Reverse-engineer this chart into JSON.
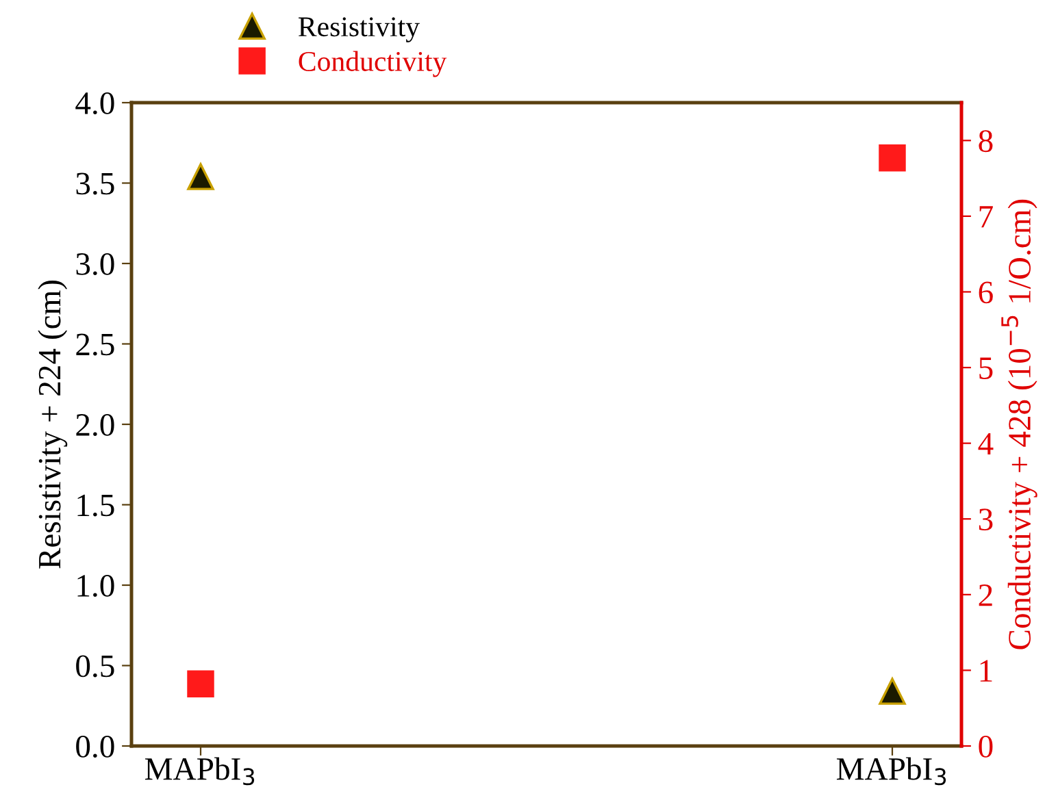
{
  "chart_data": {
    "type": "scatter",
    "categories": [
      "MAPbI$_{3}$",
      "MAPbI$_{3}$"
    ],
    "ylabel": "Resistivity + 224 (cm)",
    "y2label": "Conductivity + 428 (10$^{−5}$ 1/O.cm)",
    "ylim": [
      0,
      4.0
    ],
    "yticks": [
      {
        "value": 0,
        "label": "0.0"
      },
      0.5,
      {
        "value": 1,
        "label": "1.0"
      },
      1.5,
      {
        "value": 2,
        "label": "2.0"
      },
      2.5,
      {
        "value": 3,
        "label": "3.0"
      },
      3.5,
      {
        "value": 4,
        "label": "4.0"
      }
    ],
    "y2lim": [
      0,
      8.5
    ],
    "y2ticks": [
      0,
      1,
      2,
      3,
      4,
      5,
      6,
      7,
      8
    ],
    "legend": "top",
    "grid": false,
    "series": [
      {
        "name": "Resistivity",
        "color": "#1a1a00",
        "marker": "triangle",
        "values": [
          3.54,
          0.34
        ]
      },
      {
        "name": "Conductivity",
        "color": "#ff1a1a",
        "marker": "square",
        "axis": "y2",
        "values": [
          0.82,
          7.77
        ]
      }
    ]
  }
}
